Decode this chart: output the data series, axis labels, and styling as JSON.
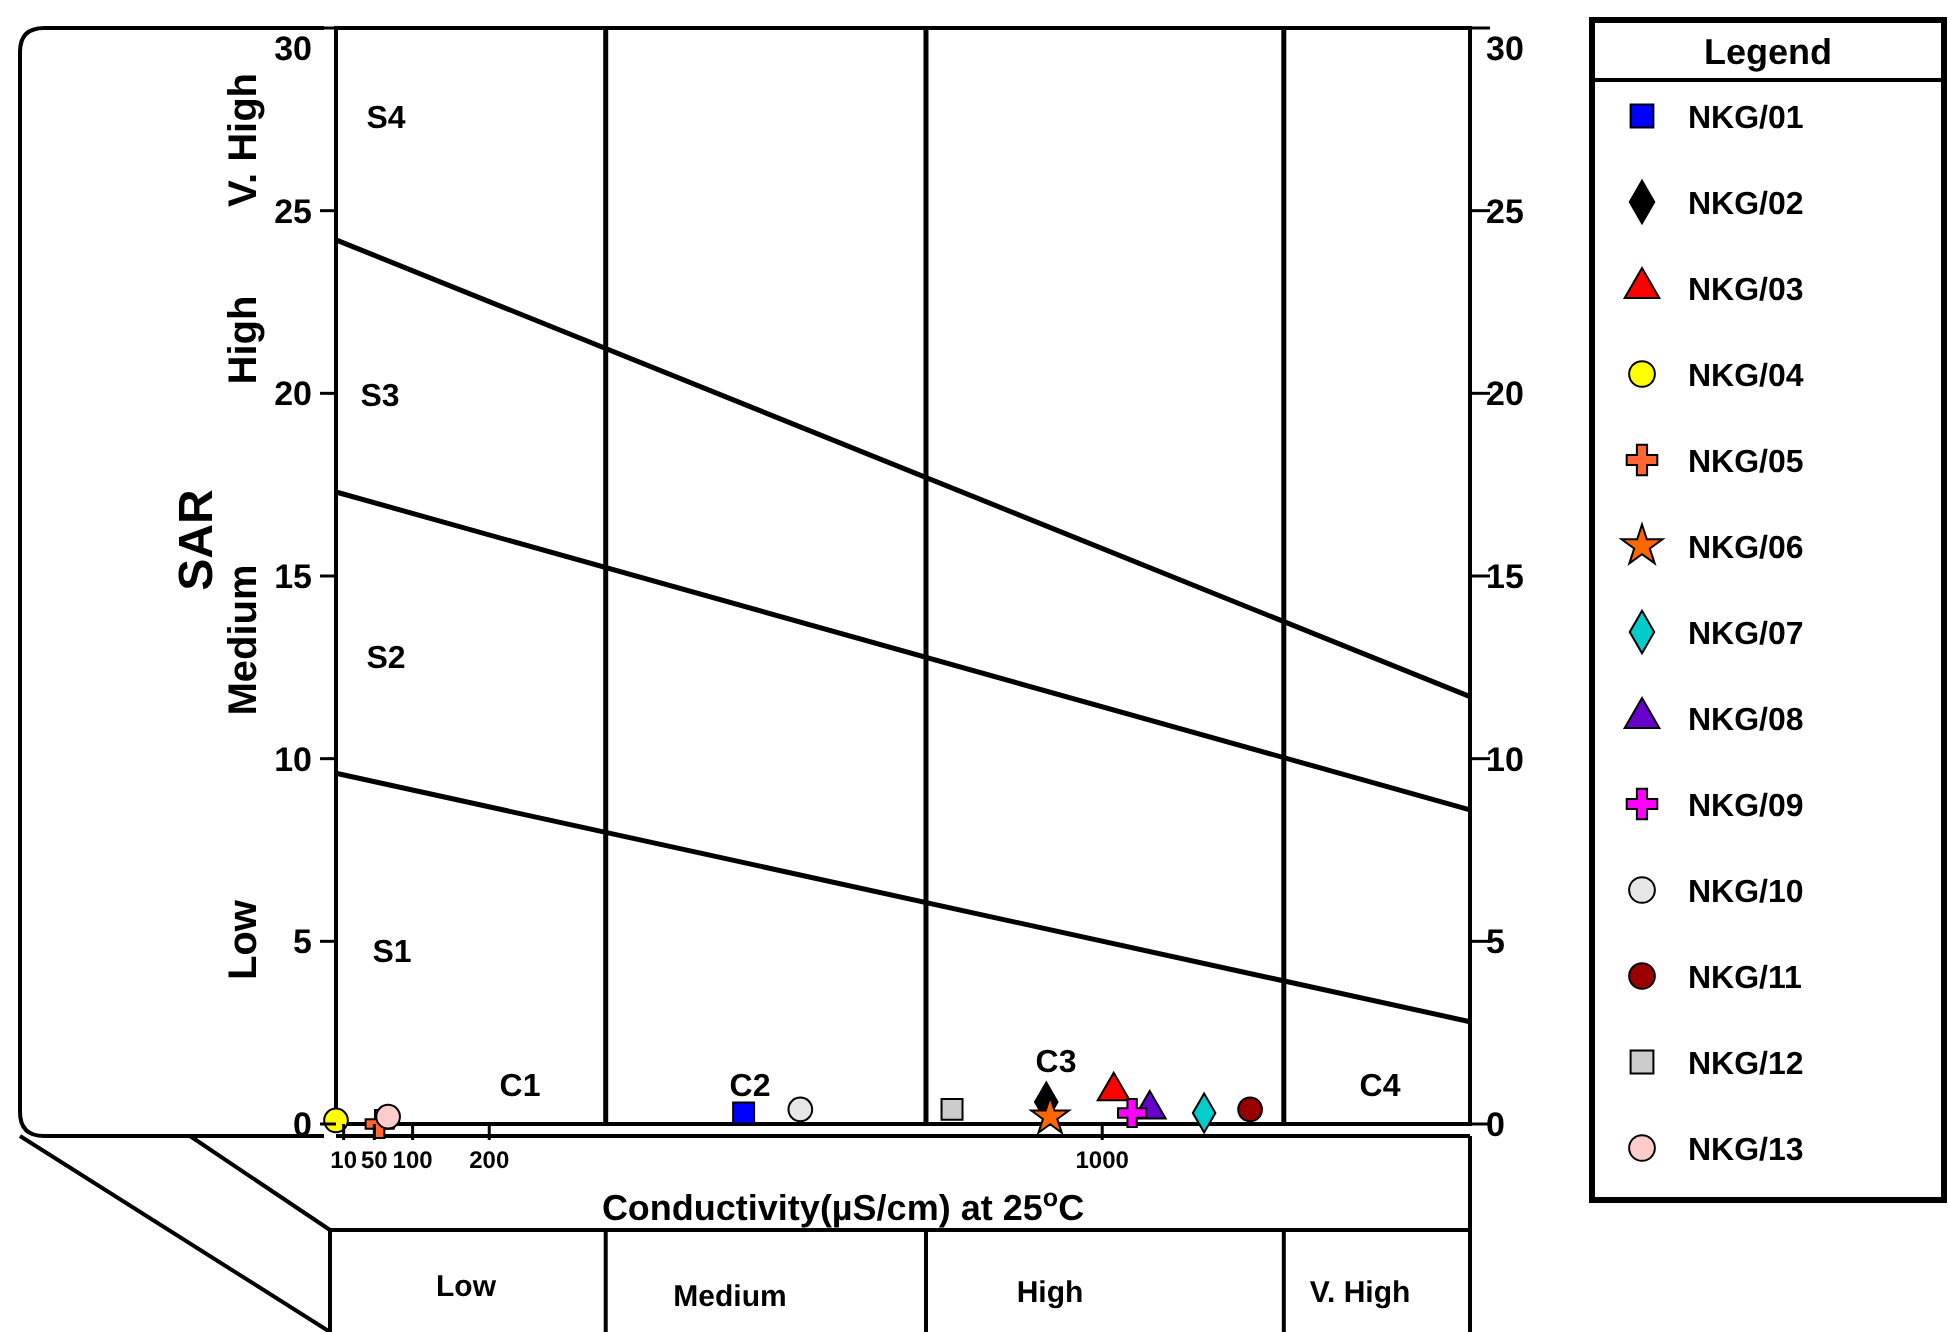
{
  "chart_data": {
    "type": "scatter",
    "ylabel": "SAR",
    "xlabel": "Conductivity(µS/cm) at 25$^{o}$C",
    "legend_title": "Legend",
    "legend": "right",
    "grid": false,
    "xlim": [
      0,
      1480
    ],
    "xticks": [
      10,
      50,
      100,
      200,
      1000
    ],
    "ylim": [
      0,
      30
    ],
    "yticks": [
      0,
      5,
      10,
      15,
      20,
      25,
      30
    ],
    "y2lim": [
      0,
      30
    ],
    "y2ticks": [
      0,
      5,
      10,
      15,
      20,
      25,
      30
    ],
    "ref_lines": [
      {
        "axis": "x",
        "value": 352
      },
      {
        "axis": "x",
        "value": 770
      },
      {
        "axis": "x",
        "value": 1237
      }
    ],
    "annotations": [
      "S4",
      "S3",
      "S2",
      "S1",
      "C1",
      "C2",
      "C3",
      "C4",
      "V. High",
      "High",
      "Medium",
      "Low",
      "Low",
      "Medium",
      "High",
      "V. High"
    ],
    "series": [
      {
        "type": "line",
        "color": "#000000",
        "x": [
          0,
          1480
        ],
        "values": [
          24.2,
          11.7
        ]
      },
      {
        "type": "line",
        "color": "#000000",
        "x": [
          0,
          1480
        ],
        "values": [
          17.3,
          8.6
        ]
      },
      {
        "type": "line",
        "color": "#000000",
        "x": [
          0,
          1480
        ],
        "values": [
          9.6,
          2.8
        ]
      },
      {
        "name": "NKG/01",
        "color": "#0000ff",
        "marker": "square",
        "x": [
          532
        ],
        "values": [
          0.3
        ]
      },
      {
        "name": "NKG/02",
        "color": "#000000",
        "marker": "diamond",
        "x": [
          927
        ],
        "values": [
          0.6
        ]
      },
      {
        "name": "NKG/03",
        "color": "#ff0000",
        "marker": "triangle",
        "x": [
          1015
        ],
        "values": [
          0.9
        ]
      },
      {
        "name": "NKG/04",
        "color": "#ffff00",
        "marker": "circle",
        "x": [
          0
        ],
        "values": [
          0.1
        ]
      },
      {
        "name": "NKG/05",
        "color": "#ff6633",
        "marker": "cross",
        "x": [
          57
        ],
        "values": [
          0
        ]
      },
      {
        "name": "NKG/06",
        "color": "#ff6600",
        "marker": "star",
        "x": [
          932
        ],
        "values": [
          0.2
        ]
      },
      {
        "name": "NKG/07",
        "color": "#00cccc",
        "marker": "diamond",
        "x": [
          1133
        ],
        "values": [
          0.3
        ]
      },
      {
        "name": "NKG/08",
        "color": "#6600cc",
        "marker": "triangle",
        "x": [
          1062
        ],
        "values": [
          0.4
        ]
      },
      {
        "name": "NKG/09",
        "color": "#ff00ff",
        "marker": "cross",
        "x": [
          1039
        ],
        "values": [
          0.3
        ]
      },
      {
        "name": "NKG/10",
        "color": "#e6e6e6",
        "marker": "circle",
        "x": [
          606
        ],
        "values": [
          0.4
        ]
      },
      {
        "name": "NKG/11",
        "color": "#990000",
        "marker": "circle",
        "x": [
          1193
        ],
        "values": [
          0.4
        ]
      },
      {
        "name": "NKG/12",
        "color": "#cccccc",
        "marker": "square",
        "x": [
          804
        ],
        "values": [
          0.4
        ]
      },
      {
        "name": "NKG/13",
        "color": "#ffcccc",
        "marker": "circle",
        "x": [
          68
        ],
        "values": [
          0.2
        ]
      }
    ]
  }
}
